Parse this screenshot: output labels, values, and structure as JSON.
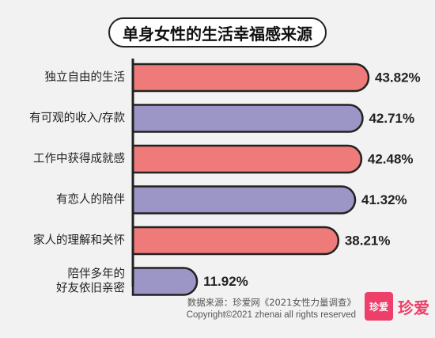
{
  "title": "单身女性的生活幸福感来源",
  "chart_data": {
    "type": "bar",
    "orientation": "horizontal",
    "categories": [
      [
        "独立自由的生活"
      ],
      [
        "有可观的收入/存款"
      ],
      [
        "工作中获得成就感"
      ],
      [
        "有恋人的陪伴"
      ],
      [
        "家人的理解和关怀"
      ],
      [
        "陪伴多年的",
        "好友依旧亲密"
      ]
    ],
    "values": [
      43.82,
      42.71,
      42.48,
      41.32,
      38.21,
      11.92
    ],
    "value_labels": [
      "43.82%",
      "42.71%",
      "42.48%",
      "41.32%",
      "38.21%",
      "11.92%"
    ],
    "unit": "%",
    "bar_colors": [
      "#ee7a7a",
      "#9b96c6",
      "#ee7a7a",
      "#9b96c6",
      "#ee7a7a",
      "#9b96c6"
    ],
    "bar_stroke": "#222222",
    "axis_color": "#222222",
    "xlim": [
      0,
      43.82
    ]
  },
  "footer": {
    "source": "数据来源：珍爱网《2021女性力量调查》",
    "copyright": "Copyright©2021  zhenai  all rights reserved"
  },
  "logo": {
    "box_text": "珍爱",
    "text": "珍爱",
    "color": "#ee3e6a"
  }
}
